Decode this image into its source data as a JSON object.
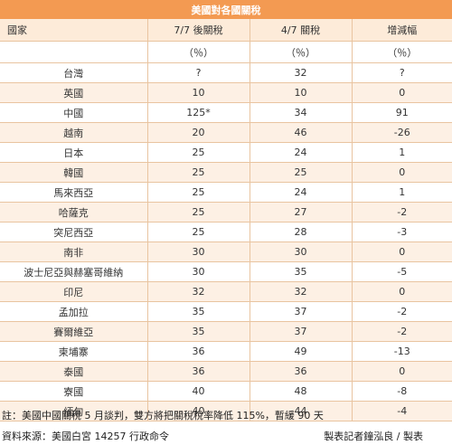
{
  "title": "美國對各國關稅",
  "headers": {
    "country": "國家",
    "col1": "7/7 後關稅",
    "col2": "4/7 關稅",
    "col3": "增減幅",
    "unit": "（％）"
  },
  "rows": [
    {
      "country": "台灣",
      "after": "?",
      "before": "32",
      "change": "?"
    },
    {
      "country": "英國",
      "after": "10",
      "before": "10",
      "change": "0"
    },
    {
      "country": "中國",
      "after": "125*",
      "before": "34",
      "change": "91"
    },
    {
      "country": "越南",
      "after": "20",
      "before": "46",
      "change": "-26"
    },
    {
      "country": "日本",
      "after": "25",
      "before": "24",
      "change": "1"
    },
    {
      "country": "韓國",
      "after": "25",
      "before": "25",
      "change": "0"
    },
    {
      "country": "馬來西亞",
      "after": "25",
      "before": "24",
      "change": "1"
    },
    {
      "country": "哈薩克",
      "after": "25",
      "before": "27",
      "change": "-2"
    },
    {
      "country": "突尼西亞",
      "after": "25",
      "before": "28",
      "change": "-3"
    },
    {
      "country": "南非",
      "after": "30",
      "before": "30",
      "change": "0"
    },
    {
      "country": "波士尼亞與赫塞哥維納",
      "after": "30",
      "before": "35",
      "change": "-5"
    },
    {
      "country": "印尼",
      "after": "32",
      "before": "32",
      "change": "0"
    },
    {
      "country": "孟加拉",
      "after": "35",
      "before": "37",
      "change": "-2"
    },
    {
      "country": "賽爾維亞",
      "after": "35",
      "before": "37",
      "change": "-2"
    },
    {
      "country": "柬埔寨",
      "after": "36",
      "before": "49",
      "change": "-13"
    },
    {
      "country": "泰國",
      "after": "36",
      "before": "36",
      "change": "0"
    },
    {
      "country": "寮國",
      "after": "40",
      "before": "48",
      "change": "-8"
    },
    {
      "country": "緬甸",
      "after": "40",
      "before": "44",
      "change": "-4"
    }
  ],
  "note": "註：美國中國關稅 5 月談判，雙方將把關稅稅率降低 115%，暫緩 90 天",
  "source": "資料來源：美國白宮 14257 行政命令",
  "credit": "製表記者鐘泓良 / 製表",
  "colors": {
    "header_bar": "#f39a52",
    "header_row": "#fdebd9",
    "stripe": "#fdf0e4",
    "border": "#e9c4a0"
  }
}
